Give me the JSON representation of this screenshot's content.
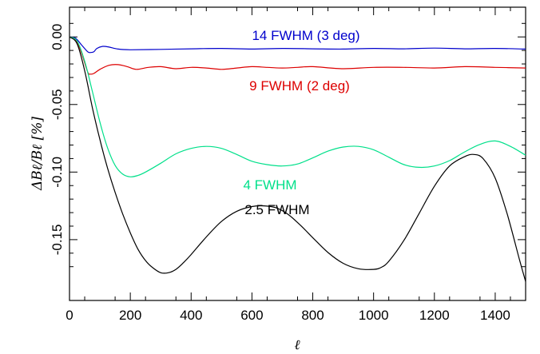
{
  "chart_data": {
    "type": "line",
    "xlabel": "ℓ",
    "ylabel": "ΔBℓ/Bℓ [%]",
    "xlim": [
      0,
      1500
    ],
    "ylim": [
      -0.195,
      0.022
    ],
    "x_ticks": [
      0,
      200,
      400,
      600,
      800,
      1000,
      1200,
      1400
    ],
    "y_ticks": [
      0.0,
      -0.05,
      -0.1,
      -0.15
    ],
    "x_tick_labels": [
      "0",
      "200",
      "400",
      "600",
      "800",
      "1000",
      "1200",
      "1400"
    ],
    "y_tick_labels": [
      "0.00",
      "-0.05",
      "-0.10",
      "-0.15"
    ],
    "grid": false,
    "series": [
      {
        "name": "14 FWHM (3 deg)",
        "color": "#0000cc",
        "x": [
          0,
          20,
          40,
          60,
          70,
          80,
          90,
          110,
          130,
          160,
          200,
          300,
          400,
          500,
          600,
          700,
          800,
          900,
          1000,
          1100,
          1200,
          1300,
          1400,
          1500
        ],
        "y": [
          0.0,
          -0.001,
          -0.006,
          -0.011,
          -0.0115,
          -0.011,
          -0.0085,
          -0.007,
          -0.0075,
          -0.009,
          -0.0095,
          -0.0092,
          -0.0088,
          -0.0085,
          -0.009,
          -0.0085,
          -0.0088,
          -0.009,
          -0.0085,
          -0.0088,
          -0.0083,
          -0.0088,
          -0.0085,
          -0.009
        ]
      },
      {
        "name": "9 FWHM (2 deg)",
        "color": "#dd0000",
        "x": [
          0,
          20,
          40,
          60,
          70,
          80,
          100,
          130,
          160,
          190,
          220,
          260,
          300,
          350,
          400,
          450,
          500,
          550,
          600,
          650,
          700,
          750,
          800,
          900,
          1000,
          1100,
          1200,
          1300,
          1400,
          1500
        ],
        "y": [
          0.0,
          -0.002,
          -0.012,
          -0.026,
          -0.0275,
          -0.027,
          -0.024,
          -0.021,
          -0.0205,
          -0.022,
          -0.024,
          -0.0225,
          -0.022,
          -0.0235,
          -0.0225,
          -0.023,
          -0.024,
          -0.023,
          -0.022,
          -0.0225,
          -0.023,
          -0.0225,
          -0.022,
          -0.0235,
          -0.0225,
          -0.0225,
          -0.023,
          -0.022,
          -0.0225,
          -0.023
        ]
      },
      {
        "name": "4 FWHM",
        "color": "#00e08a",
        "x": [
          0,
          25,
          50,
          75,
          100,
          125,
          150,
          175,
          200,
          225,
          250,
          300,
          350,
          400,
          450,
          500,
          550,
          600,
          650,
          700,
          750,
          800,
          850,
          900,
          950,
          1000,
          1050,
          1100,
          1150,
          1200,
          1250,
          1300,
          1350,
          1400,
          1450,
          1500
        ],
        "y": [
          0.0,
          -0.003,
          -0.018,
          -0.04,
          -0.063,
          -0.082,
          -0.095,
          -0.1015,
          -0.1035,
          -0.1025,
          -0.1,
          -0.0935,
          -0.0865,
          -0.0825,
          -0.081,
          -0.0825,
          -0.087,
          -0.092,
          -0.0945,
          -0.0955,
          -0.094,
          -0.0895,
          -0.0845,
          -0.0815,
          -0.081,
          -0.0835,
          -0.089,
          -0.0945,
          -0.0965,
          -0.0955,
          -0.0915,
          -0.085,
          -0.0795,
          -0.077,
          -0.081,
          -0.0875
        ]
      },
      {
        "name": "2.5 FWHM",
        "color": "#000000",
        "x": [
          0,
          25,
          50,
          75,
          100,
          125,
          150,
          175,
          200,
          225,
          250,
          275,
          300,
          325,
          350,
          375,
          400,
          450,
          500,
          550,
          600,
          640,
          680,
          720,
          760,
          800,
          850,
          900,
          950,
          1000,
          1025,
          1050,
          1100,
          1150,
          1200,
          1250,
          1300,
          1330,
          1360,
          1400,
          1440,
          1480,
          1500
        ],
        "y": [
          0.0,
          -0.005,
          -0.025,
          -0.052,
          -0.076,
          -0.097,
          -0.115,
          -0.131,
          -0.145,
          -0.157,
          -0.1655,
          -0.171,
          -0.1745,
          -0.1745,
          -0.172,
          -0.167,
          -0.161,
          -0.148,
          -0.1365,
          -0.129,
          -0.1255,
          -0.125,
          -0.1265,
          -0.1315,
          -0.1395,
          -0.1485,
          -0.1595,
          -0.1675,
          -0.1715,
          -0.172,
          -0.1705,
          -0.166,
          -0.1505,
          -0.1305,
          -0.1105,
          -0.0955,
          -0.0885,
          -0.087,
          -0.09,
          -0.1045,
          -0.1315,
          -0.165,
          -0.181
        ]
      }
    ]
  },
  "labels": {
    "l14": "14 FWHM (3 deg)",
    "l9": "9 FWHM (2 deg)",
    "l4": "4 FWHM",
    "l25": "2.5 FWHM"
  }
}
